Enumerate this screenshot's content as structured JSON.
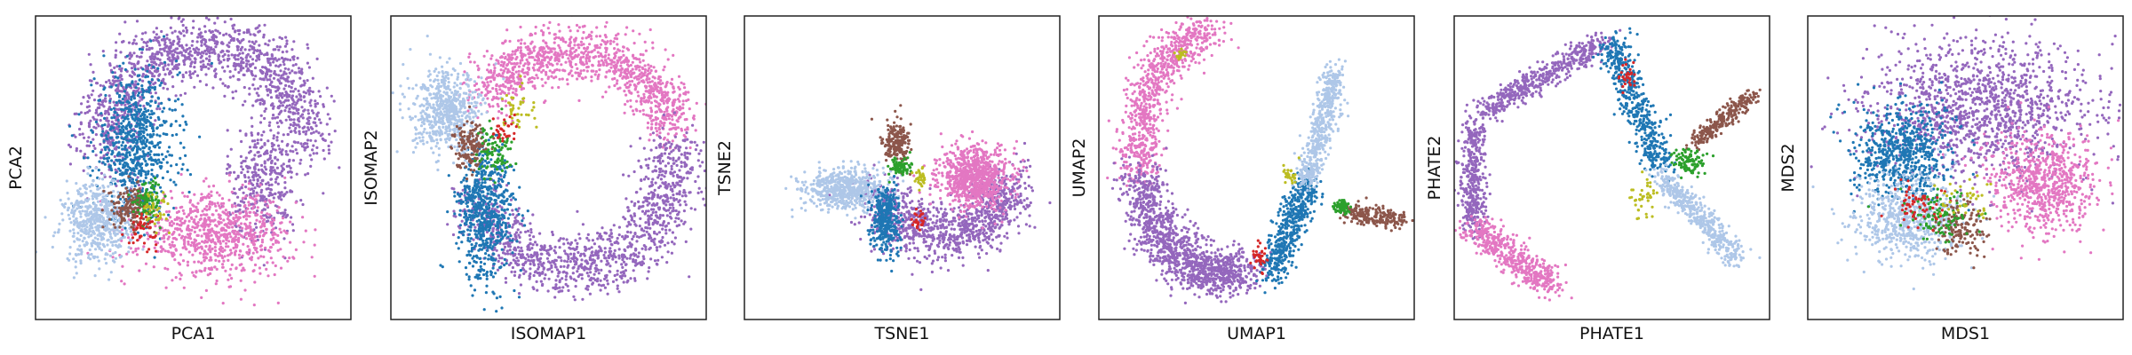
{
  "palette": {
    "blue": "#1f77b4",
    "light_blue": "#aec7e8",
    "purple": "#9467bd",
    "pink": "#e377c2",
    "brown": "#8c564b",
    "green": "#2ca02c",
    "red": "#d62728",
    "olive": "#bcbd22"
  },
  "chart_data": [
    {
      "type": "scatter",
      "xlabel": "PCA1",
      "ylabel": "PCA2",
      "grid": false,
      "ticks": false,
      "xlim": [
        0,
        1
      ],
      "ylim": [
        0,
        1
      ],
      "marker_size": 1.6,
      "clusters": [
        {
          "color": "purple",
          "shape": "ring",
          "cx": 0.54,
          "cy": 0.62,
          "rx": 0.3,
          "ry": 0.28,
          "spread": 0.055,
          "a0": -10,
          "a1": 200,
          "n": 1400
        },
        {
          "color": "purple",
          "shape": "blob",
          "cx": 0.72,
          "cy": 0.45,
          "rx": 0.1,
          "ry": 0.17,
          "n": 350
        },
        {
          "color": "blue",
          "shape": "blob",
          "cx": 0.32,
          "cy": 0.58,
          "rx": 0.12,
          "ry": 0.22,
          "n": 700
        },
        {
          "color": "pink",
          "shape": "blob",
          "cx": 0.57,
          "cy": 0.28,
          "rx": 0.22,
          "ry": 0.12,
          "n": 800
        },
        {
          "color": "light_blue",
          "shape": "blob",
          "cx": 0.2,
          "cy": 0.32,
          "rx": 0.1,
          "ry": 0.12,
          "n": 550
        },
        {
          "color": "brown",
          "shape": "blob",
          "cx": 0.3,
          "cy": 0.37,
          "rx": 0.06,
          "ry": 0.06,
          "n": 160
        },
        {
          "color": "green",
          "shape": "blob",
          "cx": 0.36,
          "cy": 0.4,
          "rx": 0.04,
          "ry": 0.06,
          "n": 90
        },
        {
          "color": "red",
          "shape": "blob",
          "cx": 0.34,
          "cy": 0.3,
          "rx": 0.04,
          "ry": 0.05,
          "n": 50
        },
        {
          "color": "olive",
          "shape": "blob",
          "cx": 0.38,
          "cy": 0.36,
          "rx": 0.04,
          "ry": 0.05,
          "n": 40
        }
      ]
    },
    {
      "type": "scatter",
      "xlabel": "ISOMAP1",
      "ylabel": "ISOMAP2",
      "grid": false,
      "ticks": false,
      "xlim": [
        0,
        1
      ],
      "ylim": [
        0,
        1
      ],
      "marker_size": 1.6,
      "clusters": [
        {
          "color": "pink",
          "shape": "ring",
          "cx": 0.58,
          "cy": 0.58,
          "rx": 0.32,
          "ry": 0.3,
          "spread": 0.045,
          "a0": 10,
          "a1": 150,
          "n": 1100
        },
        {
          "color": "purple",
          "shape": "ring",
          "cx": 0.58,
          "cy": 0.52,
          "rx": 0.32,
          "ry": 0.34,
          "spread": 0.05,
          "a0": 200,
          "a1": 370,
          "n": 1200
        },
        {
          "color": "blue",
          "shape": "blob",
          "cx": 0.3,
          "cy": 0.35,
          "rx": 0.08,
          "ry": 0.2,
          "n": 650
        },
        {
          "color": "light_blue",
          "shape": "blob",
          "cx": 0.18,
          "cy": 0.68,
          "rx": 0.1,
          "ry": 0.12,
          "n": 600
        },
        {
          "color": "brown",
          "shape": "blob",
          "cx": 0.25,
          "cy": 0.58,
          "rx": 0.05,
          "ry": 0.07,
          "n": 160
        },
        {
          "color": "green",
          "shape": "blob",
          "cx": 0.33,
          "cy": 0.55,
          "rx": 0.05,
          "ry": 0.08,
          "n": 90
        },
        {
          "color": "olive",
          "shape": "blob",
          "cx": 0.4,
          "cy": 0.7,
          "rx": 0.05,
          "ry": 0.08,
          "n": 40
        },
        {
          "color": "red",
          "shape": "blob",
          "cx": 0.36,
          "cy": 0.62,
          "rx": 0.04,
          "ry": 0.05,
          "n": 30
        }
      ]
    },
    {
      "type": "scatter",
      "xlabel": "TSNE1",
      "ylabel": "TSNE2",
      "grid": false,
      "ticks": false,
      "xlim": [
        0,
        1
      ],
      "ylim": [
        0,
        1
      ],
      "marker_size": 1.6,
      "clusters": [
        {
          "color": "purple",
          "shape": "ring",
          "cx": 0.63,
          "cy": 0.42,
          "rx": 0.19,
          "ry": 0.14,
          "spread": 0.05,
          "a0": 190,
          "a1": 370,
          "n": 1000
        },
        {
          "color": "pink",
          "shape": "blob",
          "cx": 0.73,
          "cy": 0.47,
          "rx": 0.1,
          "ry": 0.09,
          "n": 800
        },
        {
          "color": "light_blue",
          "shape": "blob",
          "cx": 0.32,
          "cy": 0.43,
          "rx": 0.12,
          "ry": 0.06,
          "n": 600
        },
        {
          "color": "blue",
          "shape": "blob",
          "cx": 0.45,
          "cy": 0.33,
          "rx": 0.04,
          "ry": 0.1,
          "n": 350
        },
        {
          "color": "brown",
          "shape": "blob",
          "cx": 0.48,
          "cy": 0.58,
          "rx": 0.04,
          "ry": 0.07,
          "n": 200
        },
        {
          "color": "green",
          "shape": "blob",
          "cx": 0.49,
          "cy": 0.5,
          "rx": 0.03,
          "ry": 0.03,
          "n": 90
        },
        {
          "color": "olive",
          "shape": "blob",
          "cx": 0.56,
          "cy": 0.46,
          "rx": 0.02,
          "ry": 0.03,
          "n": 30
        },
        {
          "color": "red",
          "shape": "blob",
          "cx": 0.55,
          "cy": 0.33,
          "rx": 0.02,
          "ry": 0.03,
          "n": 25
        }
      ]
    },
    {
      "type": "scatter",
      "xlabel": "UMAP1",
      "ylabel": "UMAP2",
      "grid": false,
      "ticks": false,
      "xlim": [
        0,
        1
      ],
      "ylim": [
        0,
        1
      ],
      "marker_size": 1.6,
      "clusters": [
        {
          "color": "pink",
          "shape": "arc",
          "cx": 0.38,
          "cy": 0.55,
          "rx": 0.25,
          "ry": 0.4,
          "spread": 0.035,
          "a0": 95,
          "a1": 190,
          "n": 800
        },
        {
          "color": "purple",
          "shape": "arc",
          "cx": 0.38,
          "cy": 0.55,
          "rx": 0.25,
          "ry": 0.4,
          "spread": 0.04,
          "a0": 190,
          "a1": 290,
          "n": 1200
        },
        {
          "color": "blue",
          "shape": "line",
          "x0": 0.55,
          "y0": 0.15,
          "x1": 0.66,
          "y1": 0.45,
          "spread": 0.025,
          "n": 500
        },
        {
          "color": "light_blue",
          "shape": "line",
          "x0": 0.66,
          "y0": 0.45,
          "x1": 0.75,
          "y1": 0.82,
          "spread": 0.02,
          "n": 500
        },
        {
          "color": "brown",
          "shape": "line",
          "x0": 0.79,
          "y0": 0.35,
          "x1": 0.96,
          "y1": 0.33,
          "spread": 0.015,
          "n": 220
        },
        {
          "color": "green",
          "shape": "blob",
          "cx": 0.77,
          "cy": 0.37,
          "rx": 0.02,
          "ry": 0.02,
          "n": 80
        },
        {
          "color": "red",
          "shape": "blob",
          "cx": 0.51,
          "cy": 0.2,
          "rx": 0.02,
          "ry": 0.05,
          "n": 35
        },
        {
          "color": "olive",
          "shape": "blob",
          "cx": 0.6,
          "cy": 0.48,
          "rx": 0.02,
          "ry": 0.03,
          "n": 30
        },
        {
          "color": "olive",
          "shape": "blob",
          "cx": 0.26,
          "cy": 0.87,
          "rx": 0.02,
          "ry": 0.02,
          "n": 25
        }
      ]
    },
    {
      "type": "scatter",
      "xlabel": "PHATE1",
      "ylabel": "PHATE2",
      "grid": false,
      "ticks": false,
      "xlim": [
        0,
        1
      ],
      "ylim": [
        0,
        1
      ],
      "marker_size": 1.6,
      "clusters": [
        {
          "color": "purple",
          "shape": "line",
          "x0": 0.08,
          "y0": 0.68,
          "x1": 0.48,
          "y1": 0.92,
          "spread": 0.02,
          "n": 500
        },
        {
          "color": "purple",
          "shape": "line",
          "x0": 0.06,
          "y0": 0.65,
          "x1": 0.06,
          "y1": 0.3,
          "spread": 0.02,
          "n": 400
        },
        {
          "color": "pink",
          "shape": "line",
          "x0": 0.06,
          "y0": 0.3,
          "x1": 0.32,
          "y1": 0.1,
          "spread": 0.025,
          "n": 500
        },
        {
          "color": "blue",
          "shape": "line",
          "x0": 0.5,
          "y0": 0.92,
          "x1": 0.65,
          "y1": 0.5,
          "spread": 0.025,
          "n": 500
        },
        {
          "color": "light_blue",
          "shape": "line",
          "x0": 0.65,
          "y0": 0.48,
          "x1": 0.9,
          "y1": 0.2,
          "spread": 0.02,
          "n": 450
        },
        {
          "color": "brown",
          "shape": "line",
          "x0": 0.76,
          "y0": 0.58,
          "x1": 0.95,
          "y1": 0.74,
          "spread": 0.015,
          "n": 250
        },
        {
          "color": "green",
          "shape": "blob",
          "cx": 0.74,
          "cy": 0.52,
          "rx": 0.04,
          "ry": 0.04,
          "n": 90
        },
        {
          "color": "olive",
          "shape": "blob",
          "cx": 0.6,
          "cy": 0.4,
          "rx": 0.04,
          "ry": 0.06,
          "n": 40
        },
        {
          "color": "red",
          "shape": "blob",
          "cx": 0.55,
          "cy": 0.8,
          "rx": 0.02,
          "ry": 0.04,
          "n": 30
        }
      ]
    },
    {
      "type": "scatter",
      "xlabel": "MDS1",
      "ylabel": "MDS2",
      "grid": false,
      "ticks": false,
      "xlim": [
        0,
        1
      ],
      "ylim": [
        0,
        1
      ],
      "marker_size": 1.6,
      "clusters": [
        {
          "color": "purple",
          "shape": "blob",
          "cx": 0.55,
          "cy": 0.7,
          "rx": 0.34,
          "ry": 0.2,
          "n": 1300
        },
        {
          "color": "pink",
          "shape": "blob",
          "cx": 0.75,
          "cy": 0.45,
          "rx": 0.15,
          "ry": 0.15,
          "n": 700
        },
        {
          "color": "blue",
          "shape": "blob",
          "cx": 0.3,
          "cy": 0.55,
          "rx": 0.14,
          "ry": 0.14,
          "n": 650
        },
        {
          "color": "light_blue",
          "shape": "blob",
          "cx": 0.32,
          "cy": 0.33,
          "rx": 0.15,
          "ry": 0.12,
          "n": 650
        },
        {
          "color": "brown",
          "shape": "blob",
          "cx": 0.48,
          "cy": 0.3,
          "rx": 0.08,
          "ry": 0.08,
          "n": 150
        },
        {
          "color": "green",
          "shape": "blob",
          "cx": 0.42,
          "cy": 0.34,
          "rx": 0.1,
          "ry": 0.08,
          "n": 100
        },
        {
          "color": "red",
          "shape": "blob",
          "cx": 0.36,
          "cy": 0.38,
          "rx": 0.08,
          "ry": 0.08,
          "n": 60
        },
        {
          "color": "olive",
          "shape": "blob",
          "cx": 0.5,
          "cy": 0.4,
          "rx": 0.08,
          "ry": 0.08,
          "n": 40
        }
      ]
    }
  ]
}
